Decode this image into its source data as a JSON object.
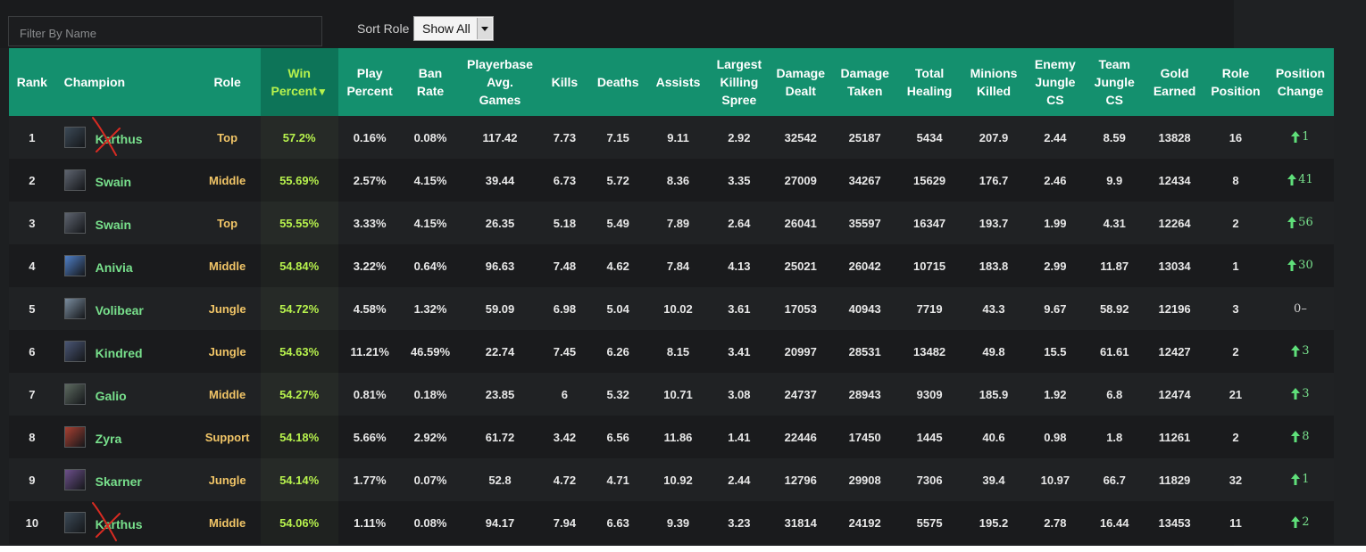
{
  "filter": {
    "placeholder": "Filter By Name"
  },
  "sort": {
    "label": "Sort Role",
    "selected": "Show All"
  },
  "columns": {
    "rank": "Rank",
    "champion": "Champion",
    "role": "Role",
    "win_line1": "Win",
    "win_line2": "Percent",
    "sort_indicator": "▼",
    "play_line1": "Play",
    "play_line2": "Percent",
    "ban_line1": "Ban",
    "ban_line2": "Rate",
    "avg_line1": "Playerbase",
    "avg_line2": "Avg.",
    "avg_line3": "Games",
    "kills": "Kills",
    "deaths": "Deaths",
    "assists": "Assists",
    "spree_line1": "Largest",
    "spree_line2": "Killing",
    "spree_line3": "Spree",
    "dealt_line1": "Damage",
    "dealt_line2": "Dealt",
    "taken_line1": "Damage",
    "taken_line2": "Taken",
    "heal_line1": "Total",
    "heal_line2": "Healing",
    "minions_line1": "Minions",
    "minions_line2": "Killed",
    "ejcs_line1": "Enemy",
    "ejcs_line2": "Jungle",
    "ejcs_line3": "CS",
    "tjcs_line1": "Team",
    "tjcs_line2": "Jungle",
    "tjcs_line3": "CS",
    "gold_line1": "Gold",
    "gold_line2": "Earned",
    "rolepos_line1": "Role",
    "rolepos_line2": "Position",
    "poschange_line1": "Position",
    "poschange_line2": "Change"
  },
  "rows": [
    {
      "rank": "1",
      "champion": "Karthus",
      "role": "Top",
      "win": "57.2%",
      "play": "0.16%",
      "ban": "0.08%",
      "avg_games": "117.42",
      "kills": "7.73",
      "deaths": "7.15",
      "assists": "9.11",
      "spree": "2.92",
      "dmg_dealt": "32542",
      "dmg_taken": "25187",
      "healing": "5434",
      "minions": "207.9",
      "enemy_jungle": "2.44",
      "team_jungle": "8.59",
      "gold": "13828",
      "role_pos": "16",
      "pos_change": "1",
      "change_dir": "up",
      "portrait": "#3c4a57",
      "crossed": true
    },
    {
      "rank": "2",
      "champion": "Swain",
      "role": "Middle",
      "win": "55.69%",
      "play": "2.57%",
      "ban": "4.15%",
      "avg_games": "39.44",
      "kills": "6.73",
      "deaths": "5.72",
      "assists": "8.36",
      "spree": "3.35",
      "dmg_dealt": "27009",
      "dmg_taken": "34267",
      "healing": "15629",
      "minions": "176.7",
      "enemy_jungle": "2.46",
      "team_jungle": "9.9",
      "gold": "12434",
      "role_pos": "8",
      "pos_change": "41",
      "change_dir": "up",
      "portrait": "#5e6470",
      "crossed": false
    },
    {
      "rank": "3",
      "champion": "Swain",
      "role": "Top",
      "win": "55.55%",
      "play": "3.33%",
      "ban": "4.15%",
      "avg_games": "26.35",
      "kills": "5.18",
      "deaths": "5.49",
      "assists": "7.89",
      "spree": "2.64",
      "dmg_dealt": "26041",
      "dmg_taken": "35597",
      "healing": "16347",
      "minions": "193.7",
      "enemy_jungle": "1.99",
      "team_jungle": "4.31",
      "gold": "12264",
      "role_pos": "2",
      "pos_change": "56",
      "change_dir": "up",
      "portrait": "#5e6470",
      "crossed": false
    },
    {
      "rank": "4",
      "champion": "Anivia",
      "role": "Middle",
      "win": "54.84%",
      "play": "3.22%",
      "ban": "0.64%",
      "avg_games": "96.63",
      "kills": "7.48",
      "deaths": "4.62",
      "assists": "7.84",
      "spree": "4.13",
      "dmg_dealt": "25021",
      "dmg_taken": "26042",
      "healing": "10715",
      "minions": "183.8",
      "enemy_jungle": "2.99",
      "team_jungle": "11.87",
      "gold": "13034",
      "role_pos": "1",
      "pos_change": "30",
      "change_dir": "up",
      "portrait": "#4f7fc6",
      "crossed": false
    },
    {
      "rank": "5",
      "champion": "Volibear",
      "role": "Jungle",
      "win": "54.72%",
      "play": "4.58%",
      "ban": "1.32%",
      "avg_games": "59.09",
      "kills": "6.98",
      "deaths": "5.04",
      "assists": "10.02",
      "spree": "3.61",
      "dmg_dealt": "17053",
      "dmg_taken": "40943",
      "healing": "7719",
      "minions": "43.3",
      "enemy_jungle": "9.67",
      "team_jungle": "58.92",
      "gold": "12196",
      "role_pos": "3",
      "pos_change": "0–",
      "change_dir": "flat",
      "portrait": "#7a8c9e",
      "crossed": false
    },
    {
      "rank": "6",
      "champion": "Kindred",
      "role": "Jungle",
      "win": "54.63%",
      "play": "11.21%",
      "ban": "46.59%",
      "avg_games": "22.74",
      "kills": "7.45",
      "deaths": "6.26",
      "assists": "8.15",
      "spree": "3.41",
      "dmg_dealt": "20997",
      "dmg_taken": "28531",
      "healing": "13482",
      "minions": "49.8",
      "enemy_jungle": "15.5",
      "team_jungle": "61.61",
      "gold": "12427",
      "role_pos": "2",
      "pos_change": "3",
      "change_dir": "up",
      "portrait": "#4a5675",
      "crossed": false
    },
    {
      "rank": "7",
      "champion": "Galio",
      "role": "Middle",
      "win": "54.27%",
      "play": "0.81%",
      "ban": "0.18%",
      "avg_games": "23.85",
      "kills": "6",
      "deaths": "5.32",
      "assists": "10.71",
      "spree": "3.08",
      "dmg_dealt": "24737",
      "dmg_taken": "28943",
      "healing": "9309",
      "minions": "185.9",
      "enemy_jungle": "1.92",
      "team_jungle": "6.8",
      "gold": "12474",
      "role_pos": "21",
      "pos_change": "3",
      "change_dir": "up",
      "portrait": "#5d6a60",
      "crossed": false
    },
    {
      "rank": "8",
      "champion": "Zyra",
      "role": "Support",
      "win": "54.18%",
      "play": "5.66%",
      "ban": "2.92%",
      "avg_games": "61.72",
      "kills": "3.42",
      "deaths": "6.56",
      "assists": "11.86",
      "spree": "1.41",
      "dmg_dealt": "22446",
      "dmg_taken": "17450",
      "healing": "1445",
      "minions": "40.6",
      "enemy_jungle": "0.98",
      "team_jungle": "1.8",
      "gold": "11261",
      "role_pos": "2",
      "pos_change": "8",
      "change_dir": "up",
      "portrait": "#a84032",
      "crossed": false
    },
    {
      "rank": "9",
      "champion": "Skarner",
      "role": "Jungle",
      "win": "54.14%",
      "play": "1.77%",
      "ban": "0.07%",
      "avg_games": "52.8",
      "kills": "4.72",
      "deaths": "4.71",
      "assists": "10.92",
      "spree": "2.44",
      "dmg_dealt": "12796",
      "dmg_taken": "29908",
      "healing": "7306",
      "minions": "39.4",
      "enemy_jungle": "10.97",
      "team_jungle": "66.7",
      "gold": "11829",
      "role_pos": "32",
      "pos_change": "1",
      "change_dir": "up",
      "portrait": "#6c4f8a",
      "crossed": false
    },
    {
      "rank": "10",
      "champion": "Karthus",
      "role": "Middle",
      "win": "54.06%",
      "play": "1.11%",
      "ban": "0.08%",
      "avg_games": "94.17",
      "kills": "7.94",
      "deaths": "6.63",
      "assists": "9.39",
      "spree": "3.23",
      "dmg_dealt": "31814",
      "dmg_taken": "24192",
      "healing": "5575",
      "minions": "195.2",
      "enemy_jungle": "2.78",
      "team_jungle": "16.44",
      "gold": "13453",
      "role_pos": "11",
      "pos_change": "2",
      "change_dir": "up",
      "portrait": "#3c4a57",
      "crossed": true
    }
  ],
  "colors": {
    "header_bg": "#14906e",
    "sorted_header_bg": "#0d7458",
    "win_text": "#b7f24d",
    "role_text": "#f1c567",
    "champion_text": "#78e08c",
    "strike_mark": "#d92b22",
    "arrow_up": "#5fe07a"
  },
  "icons": {
    "change_up": "arrow-up-icon",
    "select": "chevron-down-icon"
  }
}
